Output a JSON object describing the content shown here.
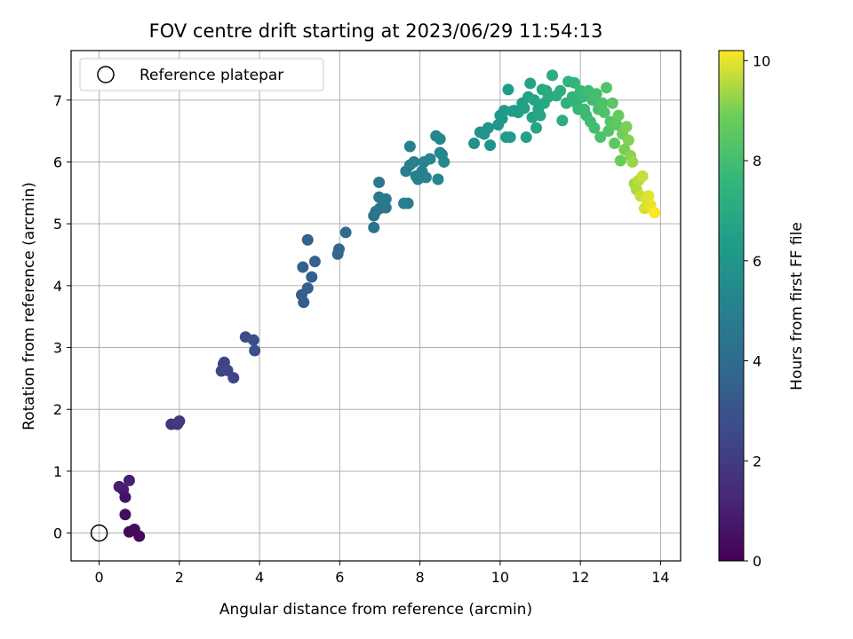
{
  "chart_data": {
    "type": "scatter",
    "title": "FOV centre drift starting at 2023/06/29 11:54:13",
    "xlabel": "Angular distance from reference (arcmin)",
    "ylabel": "Rotation from reference (arcmin)",
    "xlim": [
      -0.7,
      14.5
    ],
    "ylim": [
      -0.45,
      7.8
    ],
    "xticks": [
      0,
      2,
      4,
      6,
      8,
      10,
      12,
      14
    ],
    "yticks": [
      0,
      1,
      2,
      3,
      4,
      5,
      6,
      7
    ],
    "grid": true,
    "legend": {
      "placement": "top-left",
      "entries": [
        "Reference platepar"
      ]
    },
    "reference_point": {
      "x": 0,
      "y": 0,
      "marker": "open-circle",
      "edge_color": "#000000"
    },
    "colorbar": {
      "label": "Hours from first FF file",
      "colormap": "viridis",
      "range": [
        0,
        10.2
      ],
      "ticks": [
        0,
        2,
        4,
        6,
        8,
        10
      ]
    },
    "points": [
      {
        "x": 0.5,
        "y": 0.75,
        "c": 0.9
      },
      {
        "x": 0.6,
        "y": 0.7,
        "c": 0.95
      },
      {
        "x": 0.75,
        "y": 0.85,
        "c": 1.0
      },
      {
        "x": 0.65,
        "y": 0.58,
        "c": 0.6
      },
      {
        "x": 0.65,
        "y": 0.3,
        "c": 0.4
      },
      {
        "x": 0.75,
        "y": 0.02,
        "c": 0.2
      },
      {
        "x": 0.88,
        "y": 0.06,
        "c": 0.25
      },
      {
        "x": 1.0,
        "y": -0.05,
        "c": 0.3
      },
      {
        "x": 1.8,
        "y": 1.76,
        "c": 1.7
      },
      {
        "x": 1.95,
        "y": 1.76,
        "c": 1.75
      },
      {
        "x": 2.0,
        "y": 1.81,
        "c": 1.8
      },
      {
        "x": 3.05,
        "y": 2.62,
        "c": 2.3
      },
      {
        "x": 3.1,
        "y": 2.73,
        "c": 2.35
      },
      {
        "x": 3.12,
        "y": 2.76,
        "c": 2.35
      },
      {
        "x": 3.2,
        "y": 2.63,
        "c": 2.4
      },
      {
        "x": 3.35,
        "y": 2.51,
        "c": 2.45
      },
      {
        "x": 3.65,
        "y": 3.17,
        "c": 2.75
      },
      {
        "x": 3.85,
        "y": 3.12,
        "c": 2.8
      },
      {
        "x": 3.88,
        "y": 2.95,
        "c": 2.8
      },
      {
        "x": 5.05,
        "y": 3.85,
        "c": 3.4
      },
      {
        "x": 5.1,
        "y": 3.73,
        "c": 3.35
      },
      {
        "x": 5.2,
        "y": 3.96,
        "c": 3.45
      },
      {
        "x": 5.3,
        "y": 4.14,
        "c": 3.5
      },
      {
        "x": 5.38,
        "y": 4.39,
        "c": 3.55
      },
      {
        "x": 5.08,
        "y": 4.3,
        "c": 3.5
      },
      {
        "x": 5.2,
        "y": 4.74,
        "c": 3.6
      },
      {
        "x": 5.95,
        "y": 4.51,
        "c": 3.8
      },
      {
        "x": 5.98,
        "y": 4.59,
        "c": 3.85
      },
      {
        "x": 6.15,
        "y": 4.86,
        "c": 3.95
      },
      {
        "x": 6.85,
        "y": 4.94,
        "c": 4.3
      },
      {
        "x": 6.85,
        "y": 5.13,
        "c": 4.4
      },
      {
        "x": 6.9,
        "y": 5.2,
        "c": 4.45
      },
      {
        "x": 7.0,
        "y": 5.25,
        "c": 4.5
      },
      {
        "x": 6.98,
        "y": 5.43,
        "c": 4.55
      },
      {
        "x": 7.15,
        "y": 5.26,
        "c": 4.55
      },
      {
        "x": 7.15,
        "y": 5.4,
        "c": 4.6
      },
      {
        "x": 6.98,
        "y": 5.67,
        "c": 4.6
      },
      {
        "x": 7.6,
        "y": 5.33,
        "c": 4.8
      },
      {
        "x": 7.7,
        "y": 5.33,
        "c": 4.85
      },
      {
        "x": 7.65,
        "y": 5.85,
        "c": 4.9
      },
      {
        "x": 7.75,
        "y": 5.95,
        "c": 4.95
      },
      {
        "x": 7.85,
        "y": 6.0,
        "c": 5.0
      },
      {
        "x": 7.75,
        "y": 6.25,
        "c": 5.0
      },
      {
        "x": 7.9,
        "y": 5.77,
        "c": 5.0
      },
      {
        "x": 7.95,
        "y": 5.72,
        "c": 5.05
      },
      {
        "x": 8.05,
        "y": 5.85,
        "c": 5.1
      },
      {
        "x": 8.1,
        "y": 6.0,
        "c": 5.1
      },
      {
        "x": 8.15,
        "y": 5.75,
        "c": 5.15
      },
      {
        "x": 8.25,
        "y": 6.05,
        "c": 5.2
      },
      {
        "x": 8.4,
        "y": 6.42,
        "c": 5.3
      },
      {
        "x": 8.5,
        "y": 6.37,
        "c": 5.35
      },
      {
        "x": 8.45,
        "y": 5.72,
        "c": 5.3
      },
      {
        "x": 8.5,
        "y": 6.15,
        "c": 5.35
      },
      {
        "x": 8.55,
        "y": 6.12,
        "c": 5.4
      },
      {
        "x": 8.6,
        "y": 6.0,
        "c": 5.4
      },
      {
        "x": 9.35,
        "y": 6.3,
        "c": 5.75
      },
      {
        "x": 9.5,
        "y": 6.48,
        "c": 5.85
      },
      {
        "x": 9.7,
        "y": 6.55,
        "c": 5.95
      },
      {
        "x": 9.75,
        "y": 6.27,
        "c": 5.95
      },
      {
        "x": 9.6,
        "y": 6.45,
        "c": 5.9
      },
      {
        "x": 9.95,
        "y": 6.6,
        "c": 6.05
      },
      {
        "x": 10.0,
        "y": 6.75,
        "c": 6.1
      },
      {
        "x": 10.05,
        "y": 6.7,
        "c": 6.15
      },
      {
        "x": 10.1,
        "y": 6.83,
        "c": 6.2
      },
      {
        "x": 10.15,
        "y": 6.4,
        "c": 6.2
      },
      {
        "x": 10.2,
        "y": 7.17,
        "c": 6.3
      },
      {
        "x": 10.25,
        "y": 6.4,
        "c": 6.25
      },
      {
        "x": 10.3,
        "y": 6.82,
        "c": 6.35
      },
      {
        "x": 10.35,
        "y": 6.83,
        "c": 6.4
      },
      {
        "x": 10.45,
        "y": 6.8,
        "c": 6.45
      },
      {
        "x": 10.55,
        "y": 6.95,
        "c": 6.5
      },
      {
        "x": 10.6,
        "y": 6.87,
        "c": 6.55
      },
      {
        "x": 10.65,
        "y": 6.4,
        "c": 6.55
      },
      {
        "x": 10.7,
        "y": 7.05,
        "c": 6.6
      },
      {
        "x": 10.75,
        "y": 7.27,
        "c": 6.65
      },
      {
        "x": 10.8,
        "y": 6.72,
        "c": 6.7
      },
      {
        "x": 10.85,
        "y": 7.0,
        "c": 6.7
      },
      {
        "x": 10.9,
        "y": 6.55,
        "c": 6.75
      },
      {
        "x": 10.95,
        "y": 6.85,
        "c": 6.8
      },
      {
        "x": 11.0,
        "y": 6.75,
        "c": 6.8
      },
      {
        "x": 11.05,
        "y": 7.17,
        "c": 6.85
      },
      {
        "x": 11.1,
        "y": 6.95,
        "c": 6.9
      },
      {
        "x": 11.15,
        "y": 7.15,
        "c": 6.95
      },
      {
        "x": 11.2,
        "y": 7.05,
        "c": 7.0
      },
      {
        "x": 11.3,
        "y": 7.4,
        "c": 7.1
      },
      {
        "x": 11.4,
        "y": 7.07,
        "c": 7.15
      },
      {
        "x": 11.5,
        "y": 7.15,
        "c": 7.2
      },
      {
        "x": 11.55,
        "y": 6.67,
        "c": 7.2
      },
      {
        "x": 11.65,
        "y": 6.95,
        "c": 7.3
      },
      {
        "x": 11.7,
        "y": 7.3,
        "c": 7.35
      },
      {
        "x": 11.8,
        "y": 7.05,
        "c": 7.45
      },
      {
        "x": 11.85,
        "y": 7.28,
        "c": 7.5
      },
      {
        "x": 11.9,
        "y": 6.95,
        "c": 7.55
      },
      {
        "x": 11.95,
        "y": 6.85,
        "c": 7.6
      },
      {
        "x": 12.0,
        "y": 7.15,
        "c": 7.65
      },
      {
        "x": 12.05,
        "y": 7.05,
        "c": 7.7
      },
      {
        "x": 12.1,
        "y": 6.85,
        "c": 7.75
      },
      {
        "x": 12.15,
        "y": 6.75,
        "c": 7.8
      },
      {
        "x": 12.2,
        "y": 7.15,
        "c": 7.85
      },
      {
        "x": 12.25,
        "y": 6.65,
        "c": 7.9
      },
      {
        "x": 12.3,
        "y": 7.0,
        "c": 7.95
      },
      {
        "x": 12.35,
        "y": 6.55,
        "c": 8.0
      },
      {
        "x": 12.4,
        "y": 7.1,
        "c": 8.05
      },
      {
        "x": 12.45,
        "y": 6.85,
        "c": 8.1
      },
      {
        "x": 12.5,
        "y": 6.4,
        "c": 8.15
      },
      {
        "x": 12.55,
        "y": 6.95,
        "c": 8.2
      },
      {
        "x": 12.6,
        "y": 6.8,
        "c": 8.25
      },
      {
        "x": 12.65,
        "y": 7.2,
        "c": 8.3
      },
      {
        "x": 12.7,
        "y": 6.5,
        "c": 8.35
      },
      {
        "x": 12.75,
        "y": 6.65,
        "c": 8.4
      },
      {
        "x": 12.8,
        "y": 6.95,
        "c": 8.45
      },
      {
        "x": 12.85,
        "y": 6.3,
        "c": 8.5
      },
      {
        "x": 12.9,
        "y": 6.6,
        "c": 8.6
      },
      {
        "x": 12.95,
        "y": 6.75,
        "c": 8.7
      },
      {
        "x": 13.0,
        "y": 6.02,
        "c": 8.8
      },
      {
        "x": 13.05,
        "y": 6.45,
        "c": 8.9
      },
      {
        "x": 13.1,
        "y": 6.2,
        "c": 9.0
      },
      {
        "x": 13.15,
        "y": 6.57,
        "c": 9.05
      },
      {
        "x": 13.2,
        "y": 6.35,
        "c": 9.1
      },
      {
        "x": 13.25,
        "y": 6.1,
        "c": 9.2
      },
      {
        "x": 13.3,
        "y": 6.0,
        "c": 9.3
      },
      {
        "x": 13.35,
        "y": 5.65,
        "c": 9.4
      },
      {
        "x": 13.4,
        "y": 5.55,
        "c": 9.5
      },
      {
        "x": 13.45,
        "y": 5.7,
        "c": 9.6
      },
      {
        "x": 13.5,
        "y": 5.45,
        "c": 9.7
      },
      {
        "x": 13.55,
        "y": 5.77,
        "c": 9.75
      },
      {
        "x": 13.6,
        "y": 5.25,
        "c": 9.85
      },
      {
        "x": 13.65,
        "y": 5.4,
        "c": 9.9
      },
      {
        "x": 13.7,
        "y": 5.45,
        "c": 9.95
      },
      {
        "x": 13.75,
        "y": 5.3,
        "c": 10.0
      },
      {
        "x": 13.85,
        "y": 5.18,
        "c": 10.2
      }
    ]
  }
}
